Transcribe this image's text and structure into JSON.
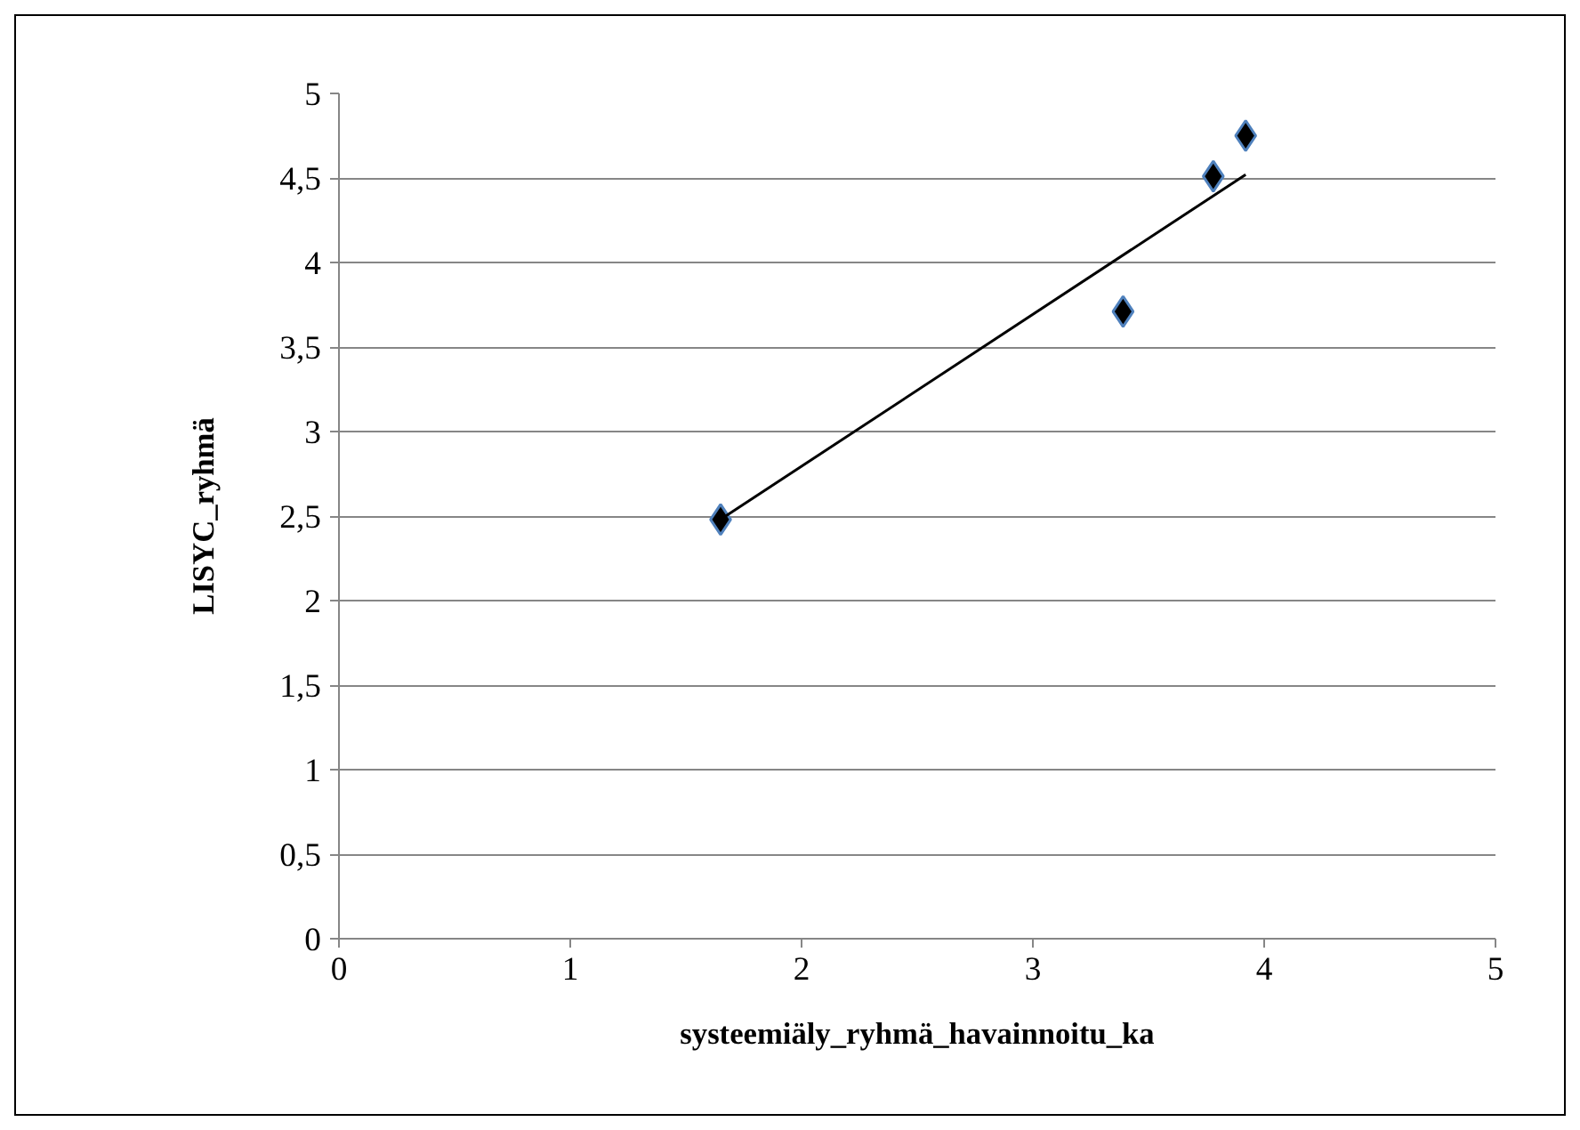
{
  "chart_data": {
    "type": "scatter",
    "xlabel": "systeemiäly_ryhmä_havainnoitu_ka",
    "ylabel": "LISYC_ryhmä",
    "xlim": [
      0,
      5
    ],
    "xticks": [
      0,
      1,
      2,
      3,
      4,
      5
    ],
    "ylim": [
      0,
      5
    ],
    "yticks": [
      0,
      {
        "value": 0.5,
        "label": "0,5"
      },
      1,
      {
        "value": 1.5,
        "label": "1,5"
      },
      2,
      {
        "value": 2.5,
        "label": "2,5"
      },
      3,
      {
        "value": 3.5,
        "label": "3,5"
      },
      4,
      {
        "value": 4.5,
        "label": "4,5"
      },
      5
    ],
    "grid": "y",
    "series": [
      {
        "marker": "diamond",
        "color": "#000000",
        "x": [
          1.65,
          3.39,
          3.78,
          3.92
        ],
        "values": [
          2.48,
          3.71,
          4.51,
          4.75
        ]
      },
      {
        "type": "line",
        "marker": "none",
        "color": "#000000",
        "x": [
          1.65,
          3.92
        ],
        "values": [
          2.48,
          4.52
        ]
      }
    ]
  }
}
